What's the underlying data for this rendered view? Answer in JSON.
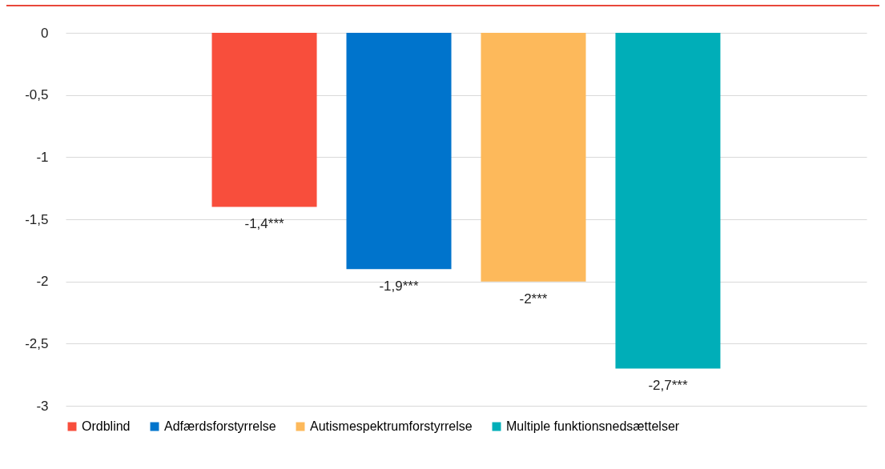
{
  "chart_data": {
    "type": "bar",
    "categories": [
      null
    ],
    "series": [
      {
        "name": "Ordblind",
        "color": "#f84e3c",
        "values": [
          -1.4
        ]
      },
      {
        "name": "Adfærdsforstyrrelse",
        "color": "#0074cc",
        "values": [
          -1.9
        ]
      },
      {
        "name": "Autismespektrumforstyrrelse",
        "color": "#fdb95b",
        "values": [
          -2
        ]
      },
      {
        "name": "Multiple funktionsnedsættelser",
        "color": "#00aeb8",
        "values": [
          -2.7
        ]
      }
    ],
    "value_labels": [
      [
        "-1,4***"
      ],
      [
        "-1,9***"
      ],
      [
        "-2***"
      ],
      [
        "-2,7***"
      ]
    ],
    "ylim": [
      -3,
      0
    ],
    "yticks": [
      {
        "value": -3,
        "label": "-3"
      },
      {
        "value": -2.5,
        "label": "-2,5"
      },
      {
        "value": -2,
        "label": "-2"
      },
      {
        "value": -1.5,
        "label": "-1,5"
      },
      {
        "value": -1,
        "label": "-1"
      },
      {
        "value": -0.5,
        "label": "-0,5"
      },
      {
        "value": 0,
        "label": "0"
      }
    ],
    "grid": "y",
    "legend": "bottom"
  }
}
